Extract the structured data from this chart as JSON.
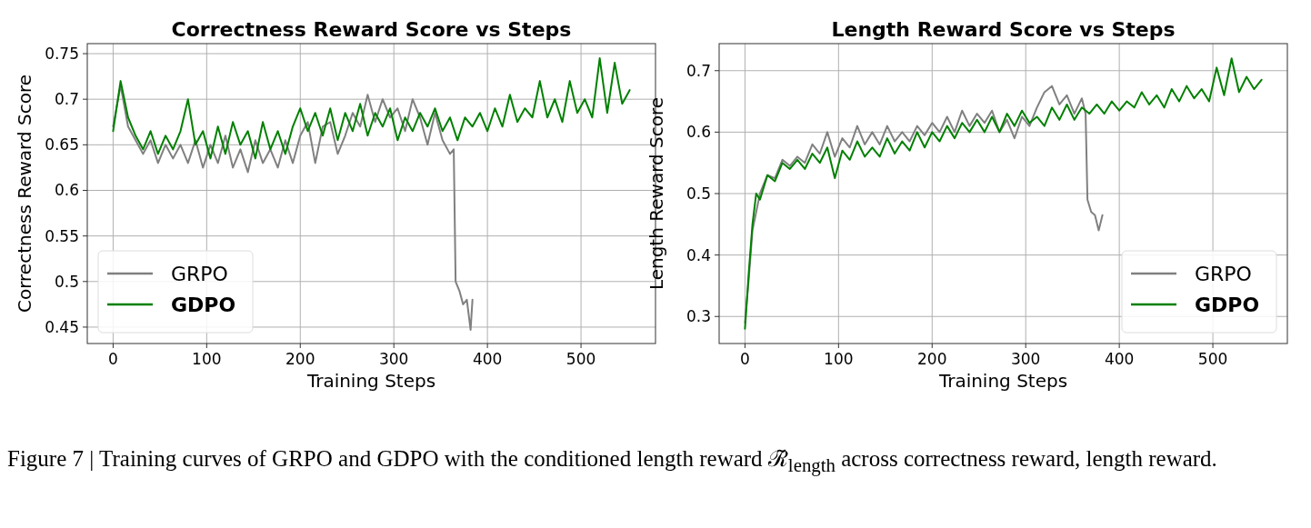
{
  "chart_data": [
    {
      "type": "line",
      "title": "Correctness Reward Score vs Steps",
      "xlabel": "Training Steps",
      "ylabel": "Correctness Reward Score",
      "xlim": [
        -27.6,
        579.6
      ],
      "ylim": [
        0.432,
        0.761
      ],
      "xticks": [
        0,
        100,
        200,
        300,
        400,
        500
      ],
      "yticks": [
        0.45,
        0.5,
        0.55,
        0.6,
        0.65,
        0.7,
        0.75
      ],
      "grid": true,
      "legend": "bottom left",
      "annotations": [
        "Figure 7 | Training curves of GRPO and GDPO with the conditioned length reward ℛ̃$_{length}$ across correctness reward, length reward."
      ],
      "series": [
        {
          "name": "GRPO",
          "color": "#808080",
          "x": [
            0,
            8,
            16,
            24,
            32,
            40,
            48,
            56,
            64,
            72,
            80,
            88,
            96,
            104,
            112,
            120,
            128,
            136,
            144,
            152,
            160,
            168,
            176,
            184,
            192,
            200,
            208,
            216,
            224,
            232,
            240,
            248,
            256,
            264,
            272,
            280,
            288,
            296,
            304,
            312,
            320,
            328,
            336,
            344,
            352,
            360,
            364,
            366,
            370,
            374,
            378,
            382,
            384
          ],
          "values": [
            0.67,
            0.715,
            0.67,
            0.655,
            0.64,
            0.655,
            0.63,
            0.65,
            0.635,
            0.65,
            0.63,
            0.655,
            0.625,
            0.65,
            0.63,
            0.66,
            0.625,
            0.645,
            0.62,
            0.655,
            0.63,
            0.645,
            0.625,
            0.655,
            0.63,
            0.66,
            0.675,
            0.63,
            0.67,
            0.675,
            0.64,
            0.66,
            0.685,
            0.67,
            0.705,
            0.675,
            0.7,
            0.68,
            0.69,
            0.665,
            0.7,
            0.68,
            0.65,
            0.685,
            0.655,
            0.64,
            0.645,
            0.5,
            0.49,
            0.475,
            0.48,
            0.447,
            0.48
          ]
        },
        {
          "name": "GDPO",
          "color": "#008000",
          "x": [
            0,
            8,
            16,
            24,
            32,
            40,
            48,
            56,
            64,
            72,
            80,
            88,
            96,
            104,
            112,
            120,
            128,
            136,
            144,
            152,
            160,
            168,
            176,
            184,
            192,
            200,
            208,
            216,
            224,
            232,
            240,
            248,
            256,
            264,
            272,
            280,
            288,
            296,
            304,
            312,
            320,
            328,
            336,
            344,
            352,
            360,
            368,
            376,
            384,
            392,
            400,
            408,
            416,
            424,
            432,
            440,
            448,
            456,
            464,
            472,
            480,
            488,
            496,
            504,
            512,
            520,
            528,
            536,
            544,
            552
          ],
          "values": [
            0.665,
            0.72,
            0.68,
            0.66,
            0.645,
            0.665,
            0.64,
            0.66,
            0.645,
            0.665,
            0.7,
            0.65,
            0.665,
            0.635,
            0.67,
            0.64,
            0.675,
            0.65,
            0.665,
            0.635,
            0.675,
            0.645,
            0.665,
            0.64,
            0.67,
            0.69,
            0.665,
            0.685,
            0.66,
            0.69,
            0.655,
            0.685,
            0.665,
            0.695,
            0.66,
            0.685,
            0.67,
            0.69,
            0.655,
            0.68,
            0.665,
            0.685,
            0.67,
            0.69,
            0.665,
            0.68,
            0.655,
            0.68,
            0.67,
            0.685,
            0.665,
            0.69,
            0.67,
            0.705,
            0.675,
            0.69,
            0.68,
            0.72,
            0.68,
            0.7,
            0.675,
            0.72,
            0.685,
            0.7,
            0.68,
            0.745,
            0.685,
            0.74,
            0.695,
            0.71
          ]
        }
      ]
    },
    {
      "type": "line",
      "title": "Length Reward Score vs Steps",
      "xlabel": "Training Steps",
      "ylabel": "Length Reward Score",
      "xlim": [
        -27.6,
        579.6
      ],
      "ylim": [
        0.256,
        0.744
      ],
      "xticks": [
        0,
        100,
        200,
        300,
        400,
        500
      ],
      "yticks": [
        0.3,
        0.4,
        0.5,
        0.6,
        0.7
      ],
      "grid": true,
      "legend": "bottom right",
      "series": [
        {
          "name": "GRPO",
          "color": "#808080",
          "x": [
            0,
            4,
            8,
            16,
            24,
            32,
            40,
            48,
            56,
            64,
            72,
            80,
            88,
            96,
            104,
            112,
            120,
            128,
            136,
            144,
            152,
            160,
            168,
            176,
            184,
            192,
            200,
            208,
            216,
            224,
            232,
            240,
            248,
            256,
            264,
            272,
            280,
            288,
            296,
            304,
            312,
            320,
            328,
            336,
            344,
            352,
            360,
            364,
            366,
            370,
            374,
            378,
            382
          ],
          "values": [
            0.29,
            0.36,
            0.44,
            0.5,
            0.53,
            0.525,
            0.555,
            0.545,
            0.56,
            0.55,
            0.58,
            0.565,
            0.6,
            0.56,
            0.59,
            0.575,
            0.61,
            0.58,
            0.6,
            0.58,
            0.61,
            0.585,
            0.6,
            0.585,
            0.61,
            0.595,
            0.615,
            0.6,
            0.625,
            0.6,
            0.635,
            0.61,
            0.63,
            0.615,
            0.635,
            0.6,
            0.62,
            0.59,
            0.625,
            0.61,
            0.64,
            0.665,
            0.675,
            0.645,
            0.66,
            0.63,
            0.655,
            0.63,
            0.49,
            0.47,
            0.465,
            0.44,
            0.465
          ]
        },
        {
          "name": "GDPO",
          "color": "#008000",
          "x": [
            0,
            4,
            8,
            12,
            16,
            24,
            32,
            40,
            48,
            56,
            64,
            72,
            80,
            88,
            96,
            104,
            112,
            120,
            128,
            136,
            144,
            152,
            160,
            168,
            176,
            184,
            192,
            200,
            208,
            216,
            224,
            232,
            240,
            248,
            256,
            264,
            272,
            280,
            288,
            296,
            304,
            312,
            320,
            328,
            336,
            344,
            352,
            360,
            368,
            376,
            384,
            392,
            400,
            408,
            416,
            424,
            432,
            440,
            448,
            456,
            464,
            472,
            480,
            488,
            496,
            504,
            512,
            520,
            528,
            536,
            544,
            552
          ],
          "values": [
            0.28,
            0.37,
            0.45,
            0.5,
            0.49,
            0.53,
            0.52,
            0.55,
            0.54,
            0.555,
            0.54,
            0.565,
            0.55,
            0.575,
            0.525,
            0.57,
            0.555,
            0.585,
            0.56,
            0.575,
            0.56,
            0.59,
            0.565,
            0.585,
            0.57,
            0.6,
            0.575,
            0.6,
            0.585,
            0.61,
            0.59,
            0.615,
            0.6,
            0.62,
            0.6,
            0.625,
            0.6,
            0.63,
            0.61,
            0.635,
            0.615,
            0.625,
            0.61,
            0.64,
            0.62,
            0.645,
            0.62,
            0.64,
            0.63,
            0.645,
            0.63,
            0.65,
            0.635,
            0.65,
            0.64,
            0.665,
            0.645,
            0.66,
            0.64,
            0.67,
            0.65,
            0.675,
            0.655,
            0.67,
            0.65,
            0.705,
            0.66,
            0.72,
            0.665,
            0.69,
            0.67,
            0.685
          ]
        }
      ]
    }
  ]
}
